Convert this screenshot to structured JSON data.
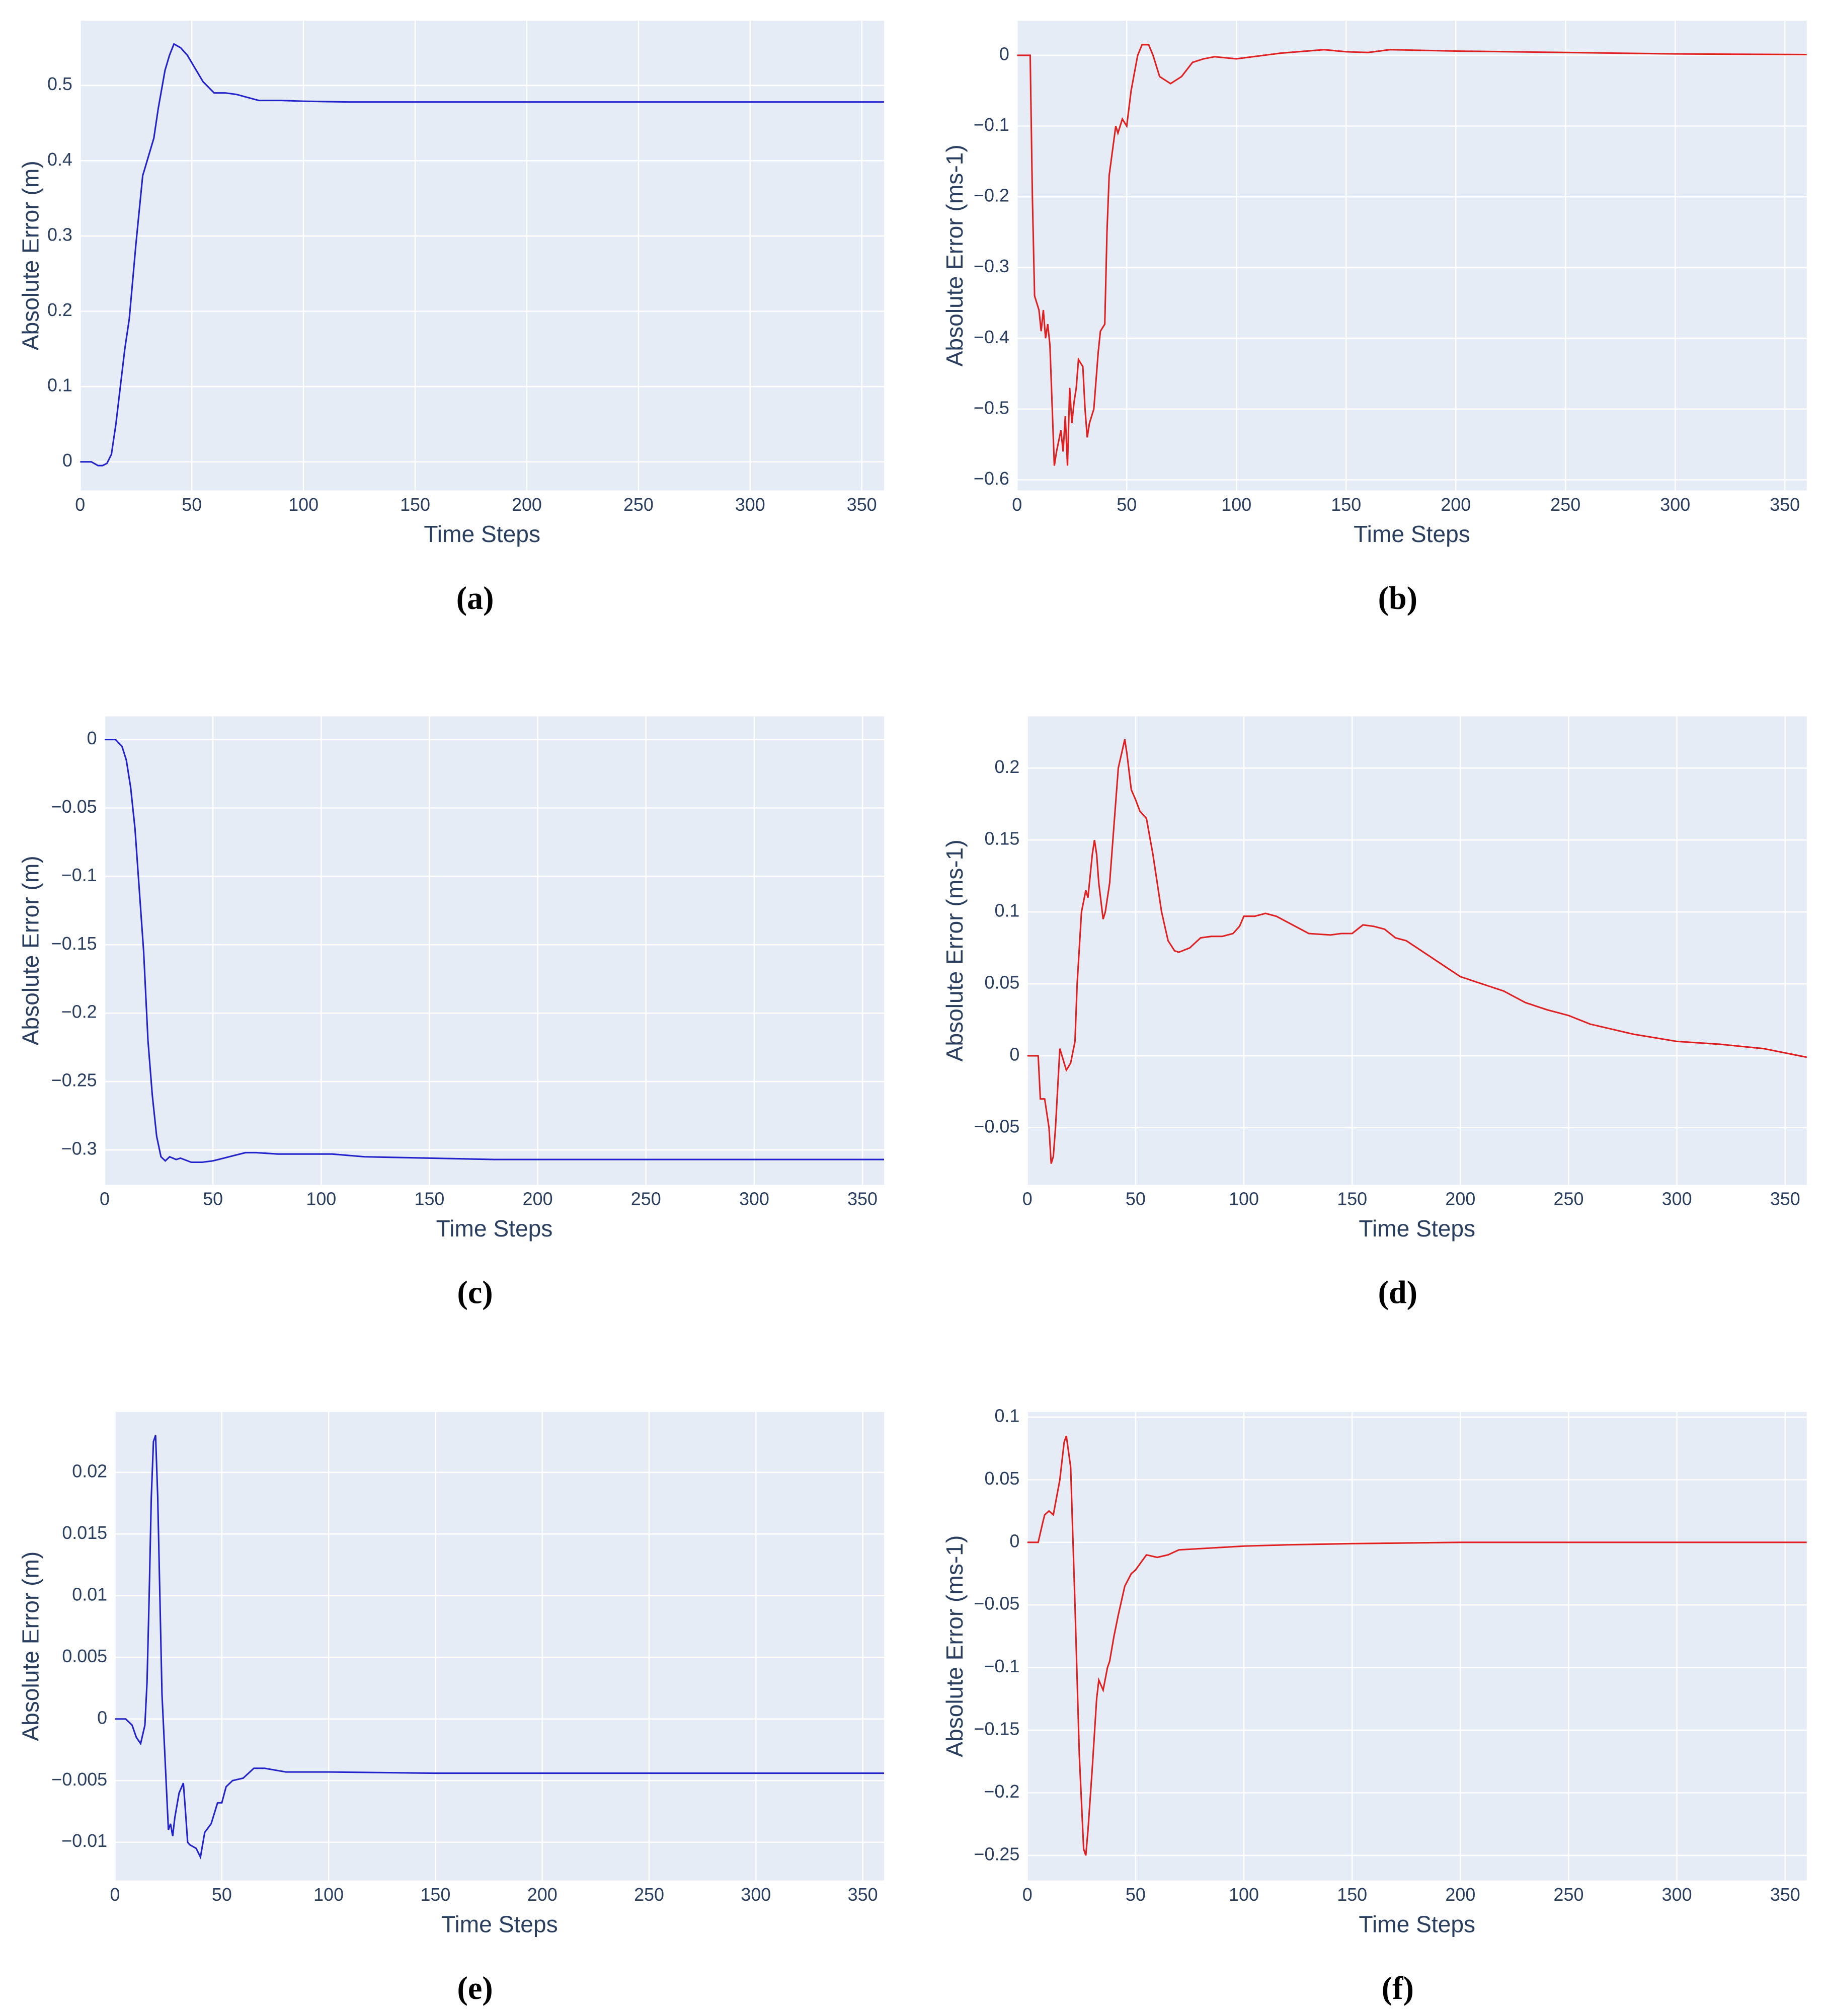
{
  "chart_data": [
    {
      "type": "line",
      "label": "(a)",
      "x_label": "Time Steps",
      "y_label": "Absolute Error (m)",
      "x": [
        0,
        5,
        8,
        10,
        12,
        14,
        16,
        18,
        20,
        22,
        25,
        28,
        30,
        33,
        35,
        38,
        40,
        42,
        45,
        48,
        50,
        55,
        60,
        65,
        70,
        80,
        90,
        100,
        120,
        150,
        200,
        250,
        300,
        360
      ],
      "series": [
        {
          "color": "#2222cc",
          "values": [
            0,
            0,
            -0.005,
            -0.005,
            -0.002,
            0.01,
            0.05,
            0.1,
            0.15,
            0.19,
            0.29,
            0.38,
            0.4,
            0.43,
            0.47,
            0.52,
            0.54,
            0.555,
            0.55,
            0.54,
            0.53,
            0.505,
            0.49,
            0.49,
            0.488,
            0.48,
            0.48,
            0.479,
            0.478,
            0.478,
            0.478,
            0.478,
            0.478,
            0.478
          ]
        }
      ],
      "xlim": [
        0,
        360
      ],
      "xticks": [
        0,
        50,
        100,
        150,
        200,
        250,
        300,
        350
      ],
      "ylim": [
        -0.038,
        0.586
      ],
      "yticks": [
        0,
        0.1,
        0.2,
        0.3,
        0.4,
        0.5
      ],
      "grid": true
    },
    {
      "type": "line",
      "label": "(b)",
      "x_label": "Time Steps",
      "y_label": "Absolute Error (ms-1)",
      "x": [
        0,
        5,
        6,
        7,
        8,
        10,
        11,
        12,
        13,
        14,
        15,
        17,
        18,
        20,
        21,
        22,
        23,
        24,
        25,
        26,
        27,
        28,
        30,
        31,
        32,
        33,
        35,
        37,
        38,
        40,
        41,
        42,
        45,
        46,
        48,
        50,
        52,
        55,
        57,
        60,
        62,
        65,
        70,
        75,
        80,
        85,
        90,
        100,
        120,
        140,
        150,
        160,
        170,
        200,
        250,
        300,
        360
      ],
      "series": [
        {
          "color": "#e02020",
          "values": [
            0,
            0,
            0,
            -0.2,
            -0.34,
            -0.36,
            -0.39,
            -0.36,
            -0.4,
            -0.38,
            -0.41,
            -0.58,
            -0.56,
            -0.53,
            -0.56,
            -0.51,
            -0.58,
            -0.47,
            -0.52,
            -0.49,
            -0.47,
            -0.43,
            -0.44,
            -0.5,
            -0.54,
            -0.52,
            -0.5,
            -0.42,
            -0.39,
            -0.38,
            -0.25,
            -0.17,
            -0.1,
            -0.11,
            -0.09,
            -0.1,
            -0.05,
            0,
            0.015,
            0.015,
            0,
            -0.03,
            -0.04,
            -0.03,
            -0.01,
            -0.005,
            -0.002,
            -0.005,
            0.003,
            0.008,
            0.005,
            0.004,
            0.008,
            0.006,
            0.004,
            0.002,
            0.001
          ]
        }
      ],
      "xlim": [
        0,
        360
      ],
      "xticks": [
        0,
        50,
        100,
        150,
        200,
        250,
        300,
        350
      ],
      "ylim": [
        -0.615,
        0.049
      ],
      "yticks": [
        {
          "value": -0.6,
          "label": "−0.6"
        },
        {
          "value": -0.5,
          "label": "−0.5"
        },
        {
          "value": -0.4,
          "label": "−0.4"
        },
        {
          "value": -0.3,
          "label": "−0.3"
        },
        {
          "value": -0.2,
          "label": "−0.2"
        },
        {
          "value": -0.1,
          "label": "−0.1"
        },
        0
      ],
      "grid": true
    },
    {
      "type": "line",
      "label": "(c)",
      "x_label": "Time Steps",
      "y_label": "Absolute Error (m)",
      "x": [
        0,
        5,
        8,
        10,
        12,
        14,
        16,
        18,
        20,
        22,
        24,
        26,
        28,
        30,
        33,
        35,
        40,
        45,
        50,
        55,
        60,
        65,
        70,
        80,
        100,
        105,
        120,
        150,
        180,
        200,
        250,
        300,
        360
      ],
      "series": [
        {
          "color": "#2222cc",
          "values": [
            0,
            0,
            -0.005,
            -0.015,
            -0.035,
            -0.065,
            -0.11,
            -0.155,
            -0.22,
            -0.26,
            -0.29,
            -0.305,
            -0.308,
            -0.305,
            -0.307,
            -0.306,
            -0.309,
            -0.309,
            -0.308,
            -0.306,
            -0.304,
            -0.302,
            -0.302,
            -0.303,
            -0.303,
            -0.303,
            -0.305,
            -0.306,
            -0.307,
            -0.307,
            -0.307,
            -0.307,
            -0.307
          ]
        }
      ],
      "xlim": [
        0,
        360
      ],
      "xticks": [
        0,
        50,
        100,
        150,
        200,
        250,
        300,
        350
      ],
      "ylim": [
        -0.3255,
        0.017
      ],
      "yticks": [
        {
          "value": -0.3,
          "label": "−0.3"
        },
        {
          "value": -0.25,
          "label": "−0.25"
        },
        {
          "value": -0.2,
          "label": "−0.2"
        },
        {
          "value": -0.15,
          "label": "−0.15"
        },
        {
          "value": -0.1,
          "label": "−0.1"
        },
        {
          "value": -0.05,
          "label": "−0.05"
        },
        0
      ],
      "grid": true
    },
    {
      "type": "line",
      "label": "(d)",
      "x_label": "Time Steps",
      "y_label": "Absolute Error (ms-1)",
      "x": [
        0,
        5,
        6,
        8,
        10,
        11,
        12,
        13,
        15,
        16,
        18,
        20,
        22,
        23,
        25,
        27,
        28,
        30,
        31,
        32,
        33,
        35,
        36,
        38,
        40,
        42,
        45,
        46,
        48,
        50,
        52,
        55,
        58,
        60,
        62,
        65,
        68,
        70,
        75,
        80,
        85,
        90,
        95,
        98,
        100,
        105,
        110,
        115,
        120,
        130,
        140,
        145,
        150,
        155,
        160,
        165,
        170,
        175,
        180,
        190,
        200,
        210,
        220,
        230,
        240,
        250,
        260,
        280,
        300,
        320,
        340,
        360
      ],
      "series": [
        {
          "color": "#e02020",
          "values": [
            0,
            0,
            -0.03,
            -0.03,
            -0.05,
            -0.075,
            -0.07,
            -0.05,
            0.005,
            0,
            -0.01,
            -0.005,
            0.01,
            0.05,
            0.1,
            0.115,
            0.11,
            0.14,
            0.15,
            0.14,
            0.12,
            0.095,
            0.1,
            0.12,
            0.16,
            0.2,
            0.22,
            0.21,
            0.185,
            0.178,
            0.17,
            0.165,
            0.14,
            0.12,
            0.1,
            0.08,
            0.073,
            0.072,
            0.075,
            0.082,
            0.083,
            0.083,
            0.085,
            0.09,
            0.097,
            0.097,
            0.099,
            0.097,
            0.093,
            0.085,
            0.084,
            0.085,
            0.085,
            0.091,
            0.09,
            0.088,
            0.082,
            0.08,
            0.075,
            0.065,
            0.055,
            0.05,
            0.045,
            0.037,
            0.032,
            0.028,
            0.022,
            0.015,
            0.01,
            0.008,
            0.005,
            -0.001
          ]
        }
      ],
      "xlim": [
        0,
        360
      ],
      "xticks": [
        0,
        50,
        100,
        150,
        200,
        250,
        300,
        350
      ],
      "ylim": [
        -0.0897,
        0.236
      ],
      "yticks": [
        {
          "value": -0.05,
          "label": "−0.05"
        },
        0,
        0.05,
        0.1,
        0.15,
        0.2
      ],
      "grid": true
    },
    {
      "type": "line",
      "label": "(e)",
      "x_label": "Time Steps",
      "y_label": "Absolute Error (m)",
      "x": [
        0,
        5,
        8,
        10,
        12,
        14,
        15,
        16,
        17,
        18,
        19,
        20,
        21,
        22,
        25,
        26,
        27,
        28,
        30,
        32,
        33,
        34,
        35,
        38,
        40,
        42,
        45,
        48,
        50,
        52,
        55,
        60,
        65,
        70,
        80,
        90,
        100,
        150,
        200,
        250,
        300,
        360
      ],
      "series": [
        {
          "color": "#2222cc",
          "values": [
            0,
            0,
            -0.0005,
            -0.0015,
            -0.002,
            -0.0005,
            0.003,
            0.01,
            0.018,
            0.0225,
            0.023,
            0.018,
            0.01,
            0.002,
            -0.009,
            -0.0085,
            -0.0095,
            -0.008,
            -0.006,
            -0.0052,
            -0.0075,
            -0.01,
            -0.0102,
            -0.0105,
            -0.0112,
            -0.0092,
            -0.0085,
            -0.0068,
            -0.0068,
            -0.0055,
            -0.005,
            -0.0048,
            -0.004,
            -0.004,
            -0.0043,
            -0.0043,
            -0.0043,
            -0.0044,
            -0.0044,
            -0.0044,
            -0.0044,
            -0.0044
          ]
        }
      ],
      "xlim": [
        0,
        360
      ],
      "xticks": [
        0,
        50,
        100,
        150,
        200,
        250,
        300,
        350
      ],
      "ylim": [
        -0.0131,
        0.0249
      ],
      "yticks": [
        {
          "value": -0.01,
          "label": "−0.01"
        },
        {
          "value": -0.005,
          "label": "−0.005"
        },
        0,
        0.005,
        0.01,
        0.015,
        0.02
      ],
      "grid": true
    },
    {
      "type": "line",
      "label": "(f)",
      "x_label": "Time Steps",
      "y_label": "Absolute Error (ms-1)",
      "x": [
        0,
        5,
        7,
        8,
        10,
        12,
        15,
        17,
        18,
        20,
        22,
        24,
        26,
        27,
        28,
        30,
        32,
        33,
        35,
        37,
        38,
        40,
        42,
        45,
        48,
        50,
        55,
        60,
        65,
        70,
        80,
        100,
        120,
        150,
        200,
        250,
        300,
        360
      ],
      "series": [
        {
          "color": "#e02020",
          "values": [
            0,
            0,
            0.015,
            0.022,
            0.025,
            0.022,
            0.05,
            0.08,
            0.085,
            0.06,
            -0.05,
            -0.17,
            -0.245,
            -0.25,
            -0.23,
            -0.18,
            -0.125,
            -0.11,
            -0.118,
            -0.1,
            -0.095,
            -0.075,
            -0.058,
            -0.035,
            -0.025,
            -0.022,
            -0.01,
            -0.012,
            -0.01,
            -0.006,
            -0.005,
            -0.003,
            -0.002,
            -0.001,
            0,
            0,
            0,
            0
          ]
        }
      ],
      "xlim": [
        0,
        360
      ],
      "xticks": [
        0,
        50,
        100,
        150,
        200,
        250,
        300,
        350
      ],
      "ylim": [
        -0.27,
        0.1041
      ],
      "yticks": [
        {
          "value": -0.25,
          "label": "−0.25"
        },
        {
          "value": -0.2,
          "label": "−0.2"
        },
        {
          "value": -0.15,
          "label": "−0.15"
        },
        {
          "value": -0.1,
          "label": "−0.1"
        },
        {
          "value": -0.05,
          "label": "−0.05"
        },
        0,
        0.05,
        0.1
      ],
      "grid": true
    }
  ]
}
